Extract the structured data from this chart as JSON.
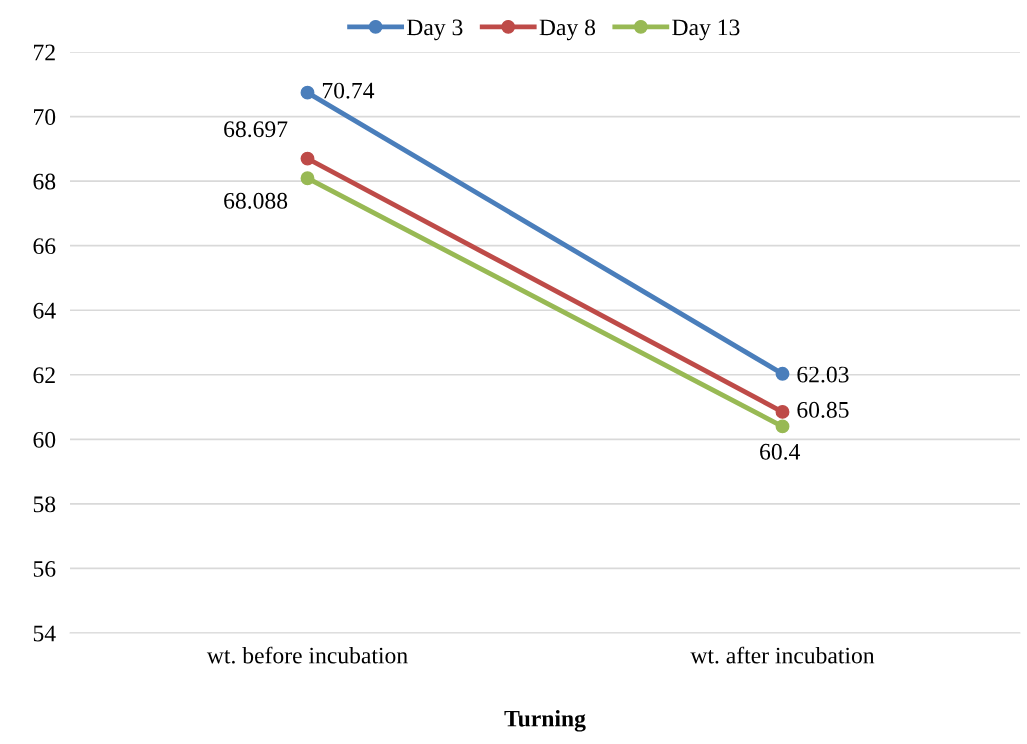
{
  "chart_data": {
    "type": "line",
    "xlabel": "Turning",
    "categories": [
      "wt. before incubation",
      "wt. after incubation"
    ],
    "series": [
      {
        "name": "Day 3",
        "color": "#4a7ebb",
        "values": [
          70.74,
          62.03
        ]
      },
      {
        "name": "Day 8",
        "color": "#be4b48",
        "values": [
          68.697,
          60.85
        ]
      },
      {
        "name": "Day 13",
        "color": "#98b954",
        "values": [
          68.088,
          60.4
        ]
      }
    ],
    "ylim": [
      54,
      72
    ],
    "yticks": [
      54,
      56,
      58,
      60,
      62,
      64,
      66,
      68,
      70,
      72
    ],
    "grid": "y",
    "legend": "top",
    "marker": "circle",
    "line_style": "solid",
    "data_labels": true
  }
}
